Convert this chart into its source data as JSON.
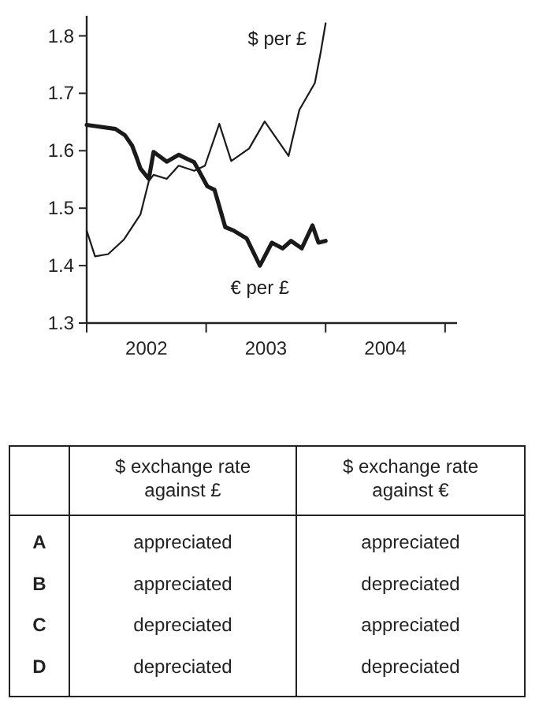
{
  "chart_data": [
    {
      "type": "line",
      "x": [
        2002.0,
        2002.07,
        2002.18,
        2002.31,
        2002.45,
        2002.52,
        2002.56,
        2002.67,
        2002.77,
        2002.9,
        2002.99,
        2003.11,
        2003.21,
        2003.36,
        2003.49,
        2003.69,
        2003.78,
        2003.91,
        2003.96,
        2004.0
      ],
      "series": [
        {
          "name": "$ per £",
          "color": "#1a1a1a",
          "values": [
            1.461,
            1.416,
            1.42,
            1.445,
            1.489,
            1.547,
            1.558,
            1.551,
            1.574,
            1.565,
            1.574,
            1.647,
            1.582,
            1.604,
            1.651,
            1.591,
            1.671,
            1.718,
            1.773,
            1.822
          ]
        },
        {
          "name": "€ per £",
          "color": "#1a1a1a",
          "x": [
            2002.0,
            2002.24,
            2002.32,
            2002.38,
            2002.42,
            2002.45,
            2002.52,
            2002.56,
            2002.67,
            2002.77,
            2002.83,
            2002.9,
            2003.01,
            2003.07,
            2003.16,
            2003.23,
            2003.34,
            2003.45,
            2003.55,
            2003.64,
            2003.71,
            2003.8,
            2003.89,
            2003.94,
            2004.0
          ],
          "values": [
            1.645,
            1.638,
            1.627,
            1.609,
            1.587,
            1.569,
            1.551,
            1.598,
            1.581,
            1.593,
            1.587,
            1.58,
            1.538,
            1.532,
            1.467,
            1.461,
            1.447,
            1.4,
            1.44,
            1.43,
            1.443,
            1.43,
            1.47,
            1.44,
            1.443
          ]
        }
      ],
      "xlim": [
        2002,
        2005.1
      ],
      "xticks": [
        {
          "value": 2002,
          "label": null
        },
        {
          "value": 2002.5,
          "label": "2002"
        },
        {
          "value": 2003,
          "label": null
        },
        {
          "value": 2003.5,
          "label": "2003"
        },
        {
          "value": 2004,
          "label": null
        },
        {
          "value": 2004.5,
          "label": "2004"
        },
        {
          "value": 2005,
          "label": null
        }
      ],
      "ylim": [
        1.3,
        1.835
      ],
      "yticks": [
        {
          "value": 1.3,
          "label": "1.3"
        },
        {
          "value": 1.4,
          "label": "1.4"
        },
        {
          "value": 1.5,
          "label": "1.5"
        },
        {
          "value": 1.6,
          "label": "1.6"
        },
        {
          "value": 1.7,
          "label": "1.7"
        },
        {
          "value": 1.8,
          "label": "1.8"
        }
      ],
      "grid": false,
      "marker": "none",
      "line_style": "solid"
    },
    {
      "type": "other",
      "annotations": [
        "$ exchange rate against £",
        "$ exchange rate against €",
        "A",
        "appreciated",
        "appreciated",
        "B",
        "appreciated",
        "depreciated",
        "C",
        "depreciated",
        "appreciated",
        "D",
        "depreciated",
        "depreciated"
      ]
    }
  ]
}
